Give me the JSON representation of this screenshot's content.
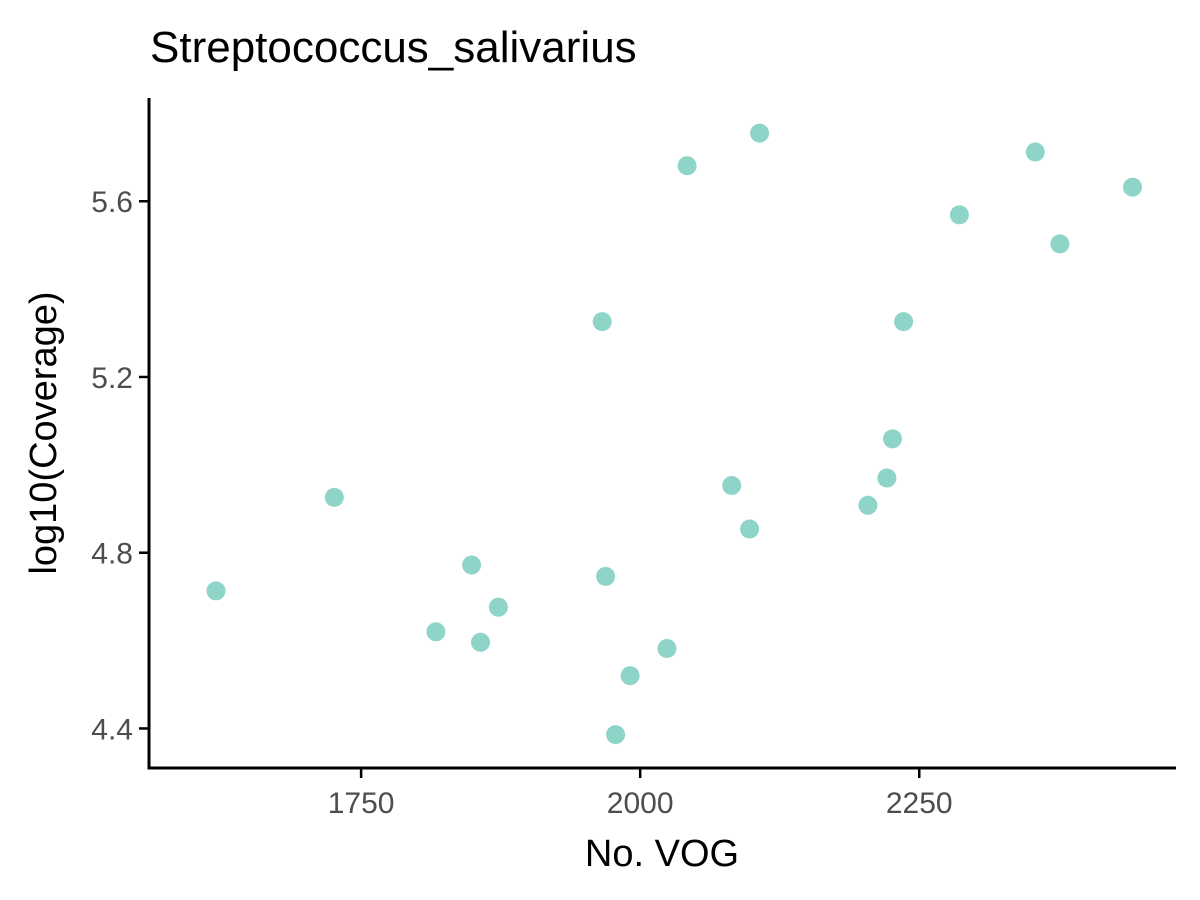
{
  "chart_data": {
    "type": "scatter",
    "title": "Streptococcus_salivarius",
    "xlabel": "No. VOG",
    "ylabel": "log10(Coverage)",
    "xlim": [
      1560,
      2480
    ],
    "ylim": [
      4.31,
      5.835
    ],
    "xticks": [
      1750,
      2000,
      2250
    ],
    "xtick_labels": [
      "1750",
      "2000",
      "2250"
    ],
    "yticks": [
      4.4,
      4.8,
      5.2,
      5.6
    ],
    "ytick_labels": [
      "4.4",
      "4.8",
      "5.2",
      "5.6"
    ],
    "grid": false,
    "legend": "none",
    "point_color": "#8fd4c8",
    "points": [
      {
        "x": 1620,
        "y": 4.713
      },
      {
        "x": 1726,
        "y": 4.926
      },
      {
        "x": 1817,
        "y": 4.62
      },
      {
        "x": 1849,
        "y": 4.772
      },
      {
        "x": 1857,
        "y": 4.596
      },
      {
        "x": 1873,
        "y": 4.676
      },
      {
        "x": 1966,
        "y": 5.326
      },
      {
        "x": 1969,
        "y": 4.746
      },
      {
        "x": 1978,
        "y": 4.386
      },
      {
        "x": 1991,
        "y": 4.52
      },
      {
        "x": 2024,
        "y": 4.582
      },
      {
        "x": 2042,
        "y": 5.681
      },
      {
        "x": 2082,
        "y": 4.953
      },
      {
        "x": 2098,
        "y": 4.854
      },
      {
        "x": 2107,
        "y": 5.755
      },
      {
        "x": 2204,
        "y": 4.908
      },
      {
        "x": 2221,
        "y": 4.97
      },
      {
        "x": 2226,
        "y": 5.059
      },
      {
        "x": 2236,
        "y": 5.326
      },
      {
        "x": 2286,
        "y": 5.569
      },
      {
        "x": 2354,
        "y": 5.712
      },
      {
        "x": 2376,
        "y": 5.503
      },
      {
        "x": 2441,
        "y": 5.632
      }
    ]
  }
}
